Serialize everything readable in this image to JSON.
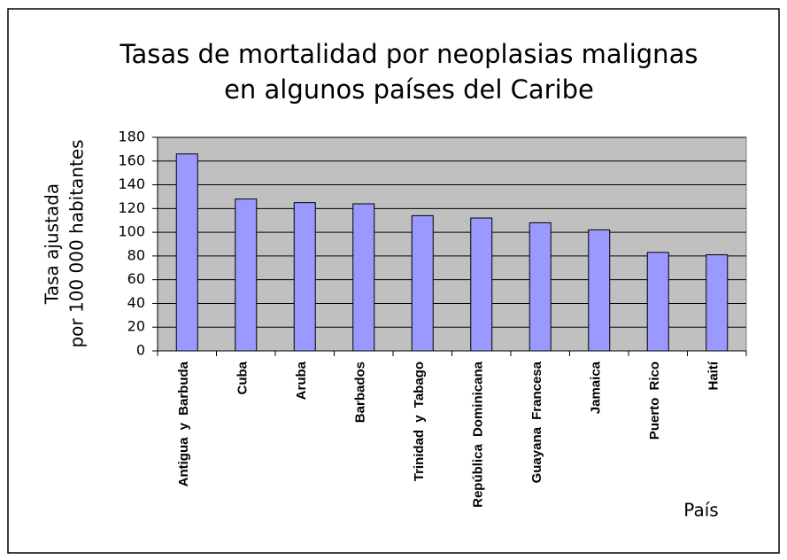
{
  "chart_data": {
    "type": "bar",
    "title": [
      "Tasas de mortalidad por neoplasias malignas",
      "en algunos países del Caribe"
    ],
    "y_label": [
      "Tasa ajustada",
      "por 100 000 habitantes"
    ],
    "x_label": "País",
    "categories": [
      "Antigua y Barbuda",
      "Cuba",
      "Aruba",
      "Barbados",
      "Trinidad y Tabago",
      "República Dominicana",
      "Guayana Francesa",
      "Jamaica",
      "Puerto Rico",
      "Haití"
    ],
    "values": [
      166,
      128,
      125,
      124,
      114,
      112,
      108,
      102,
      83,
      81
    ],
    "color": "#9999ff",
    "ylim": [
      0,
      180
    ],
    "yticks": [
      0,
      20,
      40,
      60,
      80,
      100,
      120,
      140,
      160,
      180
    ],
    "grid": true
  }
}
